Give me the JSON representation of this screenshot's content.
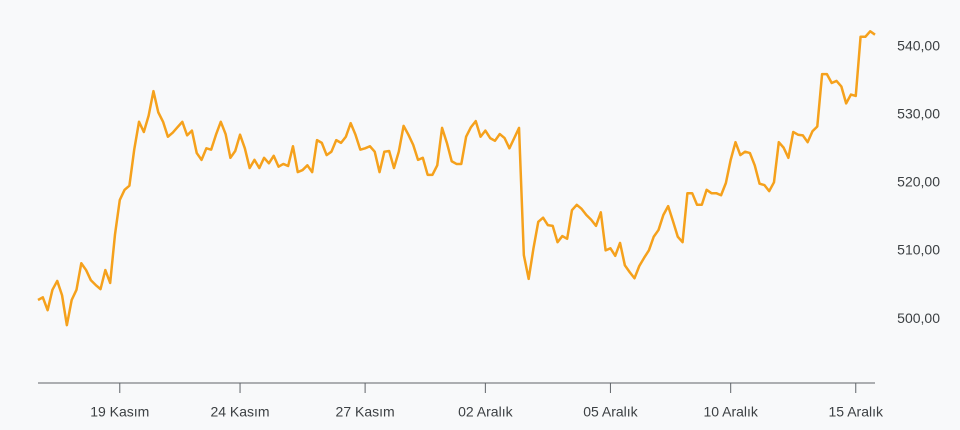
{
  "chart_data": {
    "type": "line",
    "color": "#f5a11c",
    "values": [
      502.8,
      503.2,
      501.3,
      504.3,
      505.6,
      503.5,
      499.1,
      502.8,
      504.3,
      508.2,
      507.2,
      505.7,
      505.0,
      504.4,
      507.2,
      505.3,
      512.4,
      517.5,
      519.0,
      519.6,
      524.9,
      529.0,
      527.5,
      529.9,
      533.5,
      530.4,
      529.0,
      526.8,
      527.4,
      528.2,
      529.0,
      527.0,
      527.7,
      524.4,
      523.4,
      525.1,
      524.9,
      527.1,
      529.0,
      527.2,
      523.7,
      524.7,
      527.1,
      525.1,
      522.2,
      523.4,
      522.2,
      523.7,
      522.9,
      524.0,
      522.4,
      522.8,
      522.5,
      525.4,
      521.6,
      521.9,
      522.6,
      521.6,
      526.3,
      525.9,
      524.1,
      524.6,
      526.3,
      525.9,
      526.8,
      528.8,
      527.1,
      524.9,
      525.1,
      525.4,
      524.6,
      521.6,
      524.6,
      524.7,
      522.2,
      524.6,
      528.4,
      527.1,
      525.6,
      523.4,
      523.7,
      521.2,
      521.2,
      522.6,
      528.1,
      525.9,
      523.2,
      522.8,
      522.8,
      526.8,
      528.2,
      529.1,
      526.8,
      527.7,
      526.6,
      526.2,
      527.2,
      526.6,
      525.1,
      526.6,
      528.1,
      509.4,
      505.9,
      510.4,
      514.3,
      514.9,
      513.8,
      513.7,
      511.3,
      512.2,
      511.8,
      516.0,
      516.8,
      516.2,
      515.3,
      514.6,
      513.7,
      515.7,
      510.1,
      510.4,
      509.3,
      511.2,
      507.9,
      506.9,
      506.0,
      507.8,
      509.0,
      510.1,
      512.1,
      513.1,
      515.3,
      516.6,
      514.4,
      512.1,
      511.3,
      518.5,
      518.5,
      516.8,
      516.8,
      519.0,
      518.5,
      518.5,
      518.2,
      520.0,
      523.4,
      526.0,
      524.1,
      524.6,
      524.4,
      522.6,
      519.9,
      519.7,
      518.8,
      520.1,
      526.0,
      525.2,
      523.7,
      527.5,
      527.1,
      527.0,
      526.0,
      527.6,
      528.3,
      536.0,
      536.0,
      534.7,
      535.0,
      534.2,
      531.7,
      533.0,
      532.8,
      541.5,
      541.5,
      542.3,
      541.8
    ],
    "xlim": [
      0,
      174
    ],
    "xticks": [
      {
        "value": 17,
        "label": "19 Kasım"
      },
      {
        "value": 42,
        "label": "24 Kasım"
      },
      {
        "value": 68,
        "label": "27 Kasım"
      },
      {
        "value": 93,
        "label": "02 Aralık"
      },
      {
        "value": 119,
        "label": "05 Aralık"
      },
      {
        "value": 144,
        "label": "10 Aralık"
      },
      {
        "value": 170,
        "label": "15 Aralık"
      }
    ],
    "ylim": [
      490.6,
      546.9
    ],
    "yticks": [
      {
        "value": 500,
        "label": "500,00"
      },
      {
        "value": 510,
        "label": "510,00"
      },
      {
        "value": 520,
        "label": "520,00"
      },
      {
        "value": 530,
        "label": "530,00"
      },
      {
        "value": 540,
        "label": "540,00"
      }
    ]
  }
}
